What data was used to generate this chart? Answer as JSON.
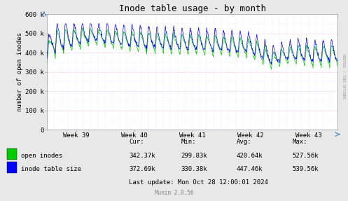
{
  "title": "Inode table usage - by month",
  "ylabel": "number of open inodes",
  "ylim": [
    0,
    600000
  ],
  "yticks": [
    0,
    100000,
    200000,
    300000,
    400000,
    500000,
    600000
  ],
  "ytick_labels": [
    "0",
    "100 k",
    "200 k",
    "300 k",
    "400 k",
    "500 k",
    "600 k"
  ],
  "xtick_labels": [
    "Week 39",
    "Week 40",
    "Week 41",
    "Week 42",
    "Week 43"
  ],
  "bg_color": "#e8e8e8",
  "plot_bg_color": "#ffffff",
  "grid_color_major": "#ff9999",
  "grid_color_minor": "#ccccff",
  "line_color_green": "#00cc00",
  "line_color_blue": "#0000ff",
  "legend_labels": [
    "open inodes",
    "inode table size"
  ],
  "stats_header": [
    "Cur:",
    "Min:",
    "Avg:",
    "Max:"
  ],
  "stats_green": [
    "342.37k",
    "299.83k",
    "420.64k",
    "527.56k"
  ],
  "stats_blue": [
    "372.69k",
    "330.38k",
    "447.46k",
    "539.56k"
  ],
  "last_update": "Last update: Mon Oct 28 12:00:01 2024",
  "munin_version": "Munin 2.0.56",
  "rrdtool_label": "RRDTOOL / TOBI OETIKER",
  "title_fontsize": 9,
  "axis_fontsize": 6.5,
  "legend_fontsize": 6.5,
  "stats_fontsize": 6.5
}
